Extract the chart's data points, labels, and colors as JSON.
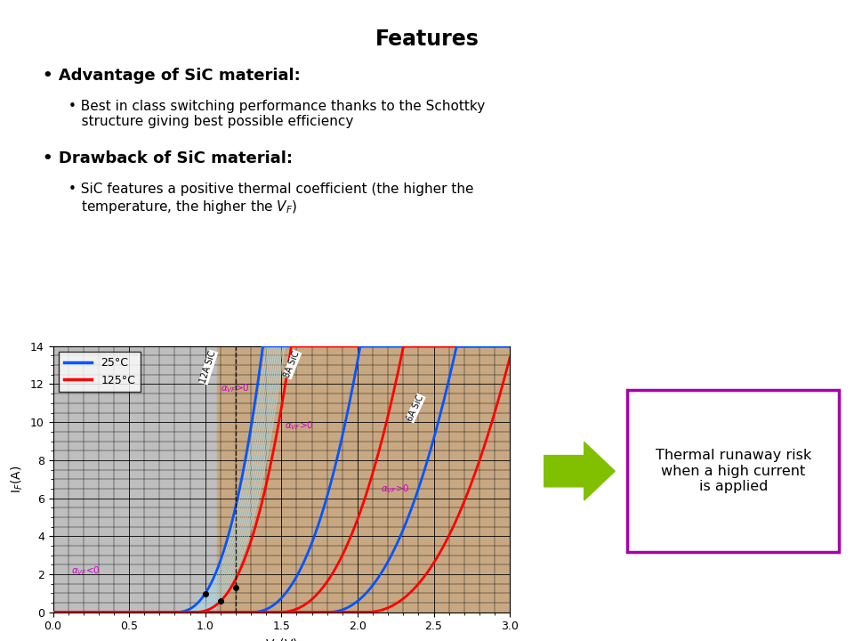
{
  "title": "Features",
  "bullet1_header": "Advantage of SiC material:",
  "bullet1_sub": "Best in class switching performance thanks to the Schottky\nstructure giving best possible efficiency",
  "bullet2_header": "Drawback of SiC material:",
  "bullet2_sub": "SiC features a positive thermal coefficient (the higher the\ntemperature, the higher the V₟)",
  "box_text": "Thermal runaway risk\nwhen a high current\nis applied",
  "xlabel": "V$_F$(V)",
  "ylabel": "I$_F$(A)",
  "legend_25": "25°C",
  "legend_125": "125°C",
  "color_blue": "#0055FF",
  "color_red": "#FF0000",
  "color_magenta": "#CC00CC",
  "color_grid_bg": "#BEBEBE",
  "color_tan_bg": "#C8A882",
  "color_box_border": "#AA00AA",
  "color_arrow": "#80C000",
  "xlim": [
    0,
    3
  ],
  "ylim": [
    0,
    14
  ],
  "label_12A": "12A SiC",
  "label_8A": "8A SiC",
  "label_6A": "6A SiC"
}
